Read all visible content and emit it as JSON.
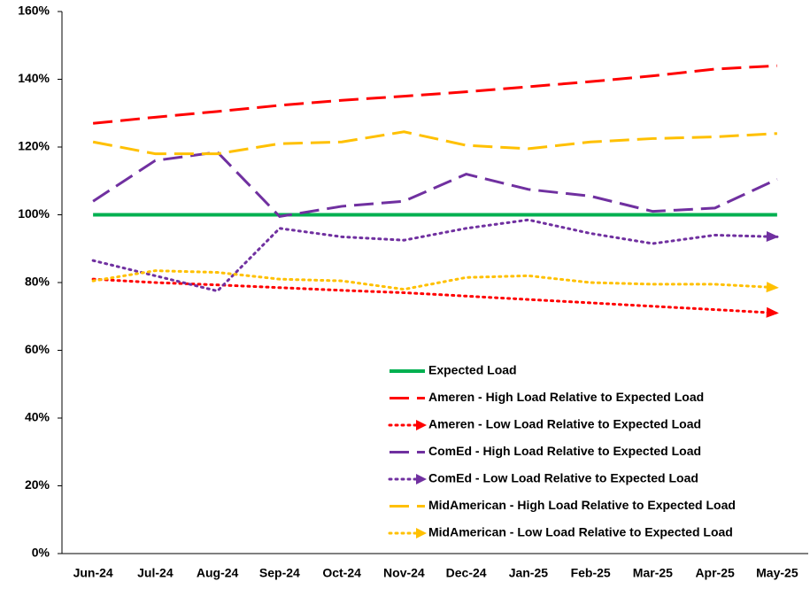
{
  "chart_data": {
    "type": "line",
    "categories": [
      "Jun-24",
      "Jul-24",
      "Aug-24",
      "Sep-24",
      "Oct-24",
      "Nov-24",
      "Dec-24",
      "Jan-25",
      "Feb-25",
      "Mar-25",
      "Apr-25",
      "May-25"
    ],
    "ylim": [
      0,
      160
    ],
    "yticks": [
      {
        "value": 0,
        "label": "0%"
      },
      {
        "value": 20,
        "label": "20%"
      },
      {
        "value": 40,
        "label": "40%"
      },
      {
        "value": 60,
        "label": "60%"
      },
      {
        "value": 80,
        "label": "80%"
      },
      {
        "value": 100,
        "label": "100%"
      },
      {
        "value": 120,
        "label": "120%"
      },
      {
        "value": 140,
        "label": "140%"
      },
      {
        "value": 160,
        "label": "160%"
      }
    ],
    "legend": "bottom-right",
    "series": [
      {
        "name": "Expected Load",
        "color": "#00b050",
        "style": "solid",
        "values": [
          100,
          100,
          100,
          100,
          100,
          100,
          100,
          100,
          100,
          100,
          100,
          100
        ]
      },
      {
        "name": "Ameren - High Load Relative to Expected Load",
        "color": "#ff0000",
        "style": "dashed",
        "values": [
          127,
          128.8,
          130.5,
          132.3,
          133.8,
          135,
          136.3,
          137.8,
          139.3,
          141,
          143,
          144
        ]
      },
      {
        "name": "Ameren - Low Load Relative to Expected Load",
        "color": "#ff0000",
        "style": "dotted",
        "end_arrow": true,
        "values": [
          81,
          80,
          79.3,
          78.5,
          77.7,
          77,
          76,
          75,
          74,
          73,
          72,
          71
        ]
      },
      {
        "name": "ComEd - High Load Relative to Expected Load",
        "color": "#7030a0",
        "style": "dashed",
        "values": [
          104,
          116,
          118.5,
          99.5,
          102.5,
          104,
          112,
          107.5,
          105.5,
          101,
          102,
          110.5
        ]
      },
      {
        "name": "ComEd - Low Load Relative to Expected Load",
        "color": "#7030a0",
        "style": "dotted",
        "end_arrow": true,
        "values": [
          86.5,
          82,
          77.5,
          96,
          93.5,
          92.5,
          96,
          98.5,
          94.5,
          91.5,
          94,
          93.5
        ]
      },
      {
        "name": "MidAmerican - High Load Relative to Expected Load",
        "color": "#ffc000",
        "style": "dashed",
        "values": [
          121.5,
          118,
          118,
          121,
          121.5,
          124.5,
          120.5,
          119.5,
          121.5,
          122.5,
          123,
          124
        ]
      },
      {
        "name": "MidAmerican - Low Load Relative to Expected Load",
        "color": "#ffc000",
        "style": "dotted",
        "end_arrow": true,
        "values": [
          80.5,
          83.5,
          83,
          81,
          80.5,
          78,
          81.5,
          82,
          80,
          79.5,
          79.5,
          78.5
        ]
      }
    ]
  }
}
